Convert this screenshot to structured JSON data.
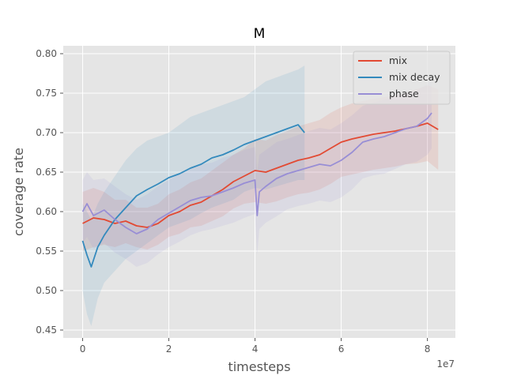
{
  "chart_data": {
    "type": "line",
    "title": "M",
    "xlabel": "timesteps",
    "ylabel": "coverage rate",
    "x_offset_text": "1e7",
    "xlim": [
      -0.45,
      8.65
    ],
    "ylim": [
      0.44,
      0.81
    ],
    "x_ticks": [
      0,
      2,
      4,
      6,
      8
    ],
    "x_tick_labels": [
      "0",
      "2",
      "4",
      "6",
      "8"
    ],
    "y_ticks": [
      0.45,
      0.5,
      0.55,
      0.6,
      0.65,
      0.7,
      0.75,
      0.8
    ],
    "y_tick_labels": [
      "0.45",
      "0.50",
      "0.55",
      "0.60",
      "0.65",
      "0.70",
      "0.75",
      "0.80"
    ],
    "grid": true,
    "background": "#e5e5e5",
    "legend_position": "upper right",
    "series": [
      {
        "name": "mix",
        "color": "#e24a33",
        "x": [
          0.0,
          0.25,
          0.5,
          0.75,
          1.0,
          1.25,
          1.5,
          1.75,
          2.0,
          2.25,
          2.5,
          2.75,
          3.0,
          3.25,
          3.5,
          3.75,
          4.0,
          4.25,
          4.5,
          4.75,
          5.0,
          5.25,
          5.5,
          5.75,
          6.0,
          6.25,
          6.5,
          6.75,
          7.0,
          7.25,
          7.5,
          7.75,
          8.0,
          8.25
        ],
        "y": [
          0.585,
          0.592,
          0.59,
          0.585,
          0.588,
          0.582,
          0.58,
          0.585,
          0.595,
          0.6,
          0.608,
          0.612,
          0.62,
          0.628,
          0.638,
          0.645,
          0.652,
          0.65,
          0.655,
          0.66,
          0.665,
          0.668,
          0.672,
          0.68,
          0.688,
          0.692,
          0.695,
          0.698,
          0.7,
          0.702,
          0.705,
          0.708,
          0.712,
          0.704
        ],
        "band_upper": [
          0.625,
          0.63,
          0.625,
          0.615,
          0.615,
          0.605,
          0.605,
          0.61,
          0.622,
          0.628,
          0.637,
          0.642,
          0.652,
          0.662,
          0.672,
          0.68,
          0.692,
          0.69,
          0.697,
          0.702,
          0.708,
          0.712,
          0.716,
          0.725,
          0.732,
          0.737,
          0.74,
          0.743,
          0.745,
          0.747,
          0.75,
          0.755,
          0.76,
          0.755
        ],
        "band_lower": [
          0.55,
          0.555,
          0.558,
          0.555,
          0.56,
          0.555,
          0.552,
          0.558,
          0.568,
          0.572,
          0.58,
          0.582,
          0.588,
          0.594,
          0.604,
          0.61,
          0.612,
          0.61,
          0.613,
          0.618,
          0.622,
          0.624,
          0.628,
          0.635,
          0.644,
          0.647,
          0.65,
          0.653,
          0.655,
          0.657,
          0.66,
          0.661,
          0.664,
          0.653
        ]
      },
      {
        "name": "mix decay",
        "color": "#348abd",
        "x": [
          0.0,
          0.1,
          0.2,
          0.35,
          0.5,
          0.75,
          1.0,
          1.25,
          1.5,
          1.75,
          2.0,
          2.25,
          2.5,
          2.75,
          3.0,
          3.25,
          3.5,
          3.75,
          4.0,
          4.25,
          4.5,
          4.75,
          5.0,
          5.15
        ],
        "y": [
          0.563,
          0.545,
          0.53,
          0.555,
          0.57,
          0.59,
          0.605,
          0.62,
          0.628,
          0.635,
          0.643,
          0.648,
          0.655,
          0.66,
          0.668,
          0.672,
          0.678,
          0.685,
          0.69,
          0.695,
          0.7,
          0.705,
          0.71,
          0.7
        ],
        "band_upper": [
          0.61,
          0.6,
          0.59,
          0.61,
          0.625,
          0.645,
          0.665,
          0.68,
          0.69,
          0.695,
          0.7,
          0.71,
          0.72,
          0.725,
          0.73,
          0.735,
          0.74,
          0.745,
          0.755,
          0.765,
          0.77,
          0.775,
          0.78,
          0.785
        ],
        "band_lower": [
          0.5,
          0.47,
          0.455,
          0.49,
          0.51,
          0.525,
          0.54,
          0.55,
          0.56,
          0.57,
          0.58,
          0.585,
          0.59,
          0.598,
          0.605,
          0.61,
          0.615,
          0.625,
          0.63,
          0.628,
          0.632,
          0.636,
          0.64,
          0.64
        ]
      },
      {
        "name": "phase",
        "color": "#988ed5",
        "x": [
          0.0,
          0.1,
          0.25,
          0.5,
          0.75,
          1.0,
          1.25,
          1.5,
          1.75,
          2.0,
          2.25,
          2.5,
          2.75,
          3.0,
          3.25,
          3.5,
          3.75,
          4.0,
          4.05,
          4.1,
          4.25,
          4.5,
          4.75,
          5.0,
          5.25,
          5.5,
          5.75,
          6.0,
          6.25,
          6.5,
          6.75,
          7.0,
          7.25,
          7.5,
          7.75,
          8.0,
          8.1
        ],
        "y": [
          0.6,
          0.61,
          0.595,
          0.602,
          0.59,
          0.58,
          0.572,
          0.578,
          0.59,
          0.598,
          0.606,
          0.614,
          0.618,
          0.62,
          0.625,
          0.63,
          0.636,
          0.64,
          0.595,
          0.625,
          0.632,
          0.642,
          0.648,
          0.652,
          0.656,
          0.66,
          0.658,
          0.665,
          0.675,
          0.688,
          0.692,
          0.695,
          0.7,
          0.705,
          0.708,
          0.718,
          0.725
        ],
        "band_upper": [
          0.64,
          0.65,
          0.64,
          0.642,
          0.632,
          0.622,
          0.615,
          0.622,
          0.632,
          0.64,
          0.648,
          0.656,
          0.66,
          0.662,
          0.668,
          0.672,
          0.678,
          0.682,
          0.65,
          0.672,
          0.678,
          0.688,
          0.692,
          0.697,
          0.702,
          0.706,
          0.704,
          0.712,
          0.722,
          0.734,
          0.738,
          0.742,
          0.746,
          0.75,
          0.753,
          0.762,
          0.768
        ],
        "band_lower": [
          0.56,
          0.568,
          0.553,
          0.56,
          0.548,
          0.54,
          0.53,
          0.535,
          0.546,
          0.555,
          0.562,
          0.57,
          0.575,
          0.578,
          0.582,
          0.586,
          0.592,
          0.597,
          0.545,
          0.578,
          0.586,
          0.594,
          0.603,
          0.607,
          0.61,
          0.614,
          0.612,
          0.618,
          0.628,
          0.642,
          0.646,
          0.648,
          0.654,
          0.66,
          0.663,
          0.672,
          0.68
        ]
      }
    ]
  }
}
